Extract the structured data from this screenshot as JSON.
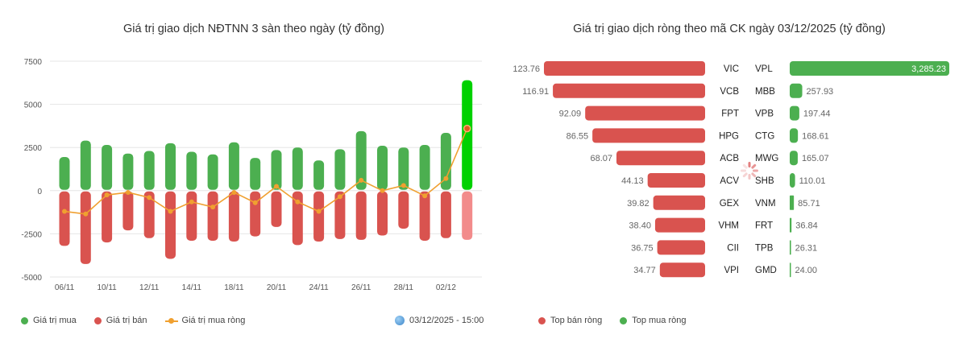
{
  "left_title": "Giá trị giao dịch NĐTNN 3 sàn theo ngày (tỷ đồng)",
  "right_title": "Giá trị giao dịch ròng theo mã CK ngày 03/12/2025 (tỷ đồng)",
  "timestamp": "03/12/2025 - 15:00",
  "colors": {
    "buy": "#4caf50",
    "sell": "#d9534f",
    "net": "#f0a030",
    "buy_highlight": "#00d100",
    "sell_highlight": "#f28b8b"
  },
  "legend_left": [
    {
      "label": "Giá trị mua",
      "color": "#4caf50"
    },
    {
      "label": "Giá trị bán",
      "color": "#d9534f"
    },
    {
      "label": "Giá trị mua ròng",
      "color": "#f0a030"
    }
  ],
  "legend_right": [
    {
      "label": "Top bán ròng",
      "color": "#d9534f"
    },
    {
      "label": "Top mua ròng",
      "color": "#4caf50"
    }
  ],
  "chart_data": [
    {
      "type": "bar",
      "title": "Giá trị giao dịch NĐTNN 3 sàn theo ngày (tỷ đồng)",
      "ylim": [
        -5000,
        7500
      ],
      "yticks": [
        7500,
        5000,
        2500,
        0,
        -2500,
        -5000
      ],
      "xtick_labels": [
        "06/11",
        "10/11",
        "12/11",
        "14/11",
        "18/11",
        "20/11",
        "24/11",
        "26/11",
        "28/11",
        "02/12"
      ],
      "grid": true,
      "legend_position": "bottom-left",
      "series": [
        {
          "name": "Giá trị mua",
          "values": [
            1950,
            2900,
            2650,
            2150,
            2300,
            2750,
            2250,
            2100,
            2800,
            1900,
            2350,
            2500,
            1750,
            2400,
            3450,
            2600,
            2500,
            2650,
            3350,
            6400
          ]
        },
        {
          "name": "Giá trị bán",
          "values": [
            -3200,
            -4250,
            -3000,
            -2300,
            -2750,
            -3950,
            -2900,
            -2900,
            -2950,
            -2650,
            -2100,
            -3150,
            -2950,
            -2800,
            -2850,
            -2600,
            -2200,
            -2900,
            -2750,
            -2850
          ]
        },
        {
          "name": "Giá trị mua ròng",
          "values": [
            -1200,
            -1350,
            -250,
            -100,
            -400,
            -1200,
            -650,
            -950,
            -100,
            -700,
            250,
            -650,
            -1200,
            -350,
            600,
            0,
            300,
            -300,
            700,
            3600
          ]
        }
      ]
    },
    {
      "type": "bar",
      "title": "Giá trị giao dịch ròng theo mã CK ngày 03/12/2025 (tỷ đồng)",
      "sell": [
        {
          "ticker": "VIC",
          "value": "123.76"
        },
        {
          "ticker": "VCB",
          "value": "116.91"
        },
        {
          "ticker": "FPT",
          "value": "92.09"
        },
        {
          "ticker": "HPG",
          "value": "86.55"
        },
        {
          "ticker": "ACB",
          "value": "68.07"
        },
        {
          "ticker": "ACV",
          "value": "44.13"
        },
        {
          "ticker": "GEX",
          "value": "39.82"
        },
        {
          "ticker": "VHM",
          "value": "38.40"
        },
        {
          "ticker": "CII",
          "value": "36.75"
        },
        {
          "ticker": "VPI",
          "value": "34.77"
        }
      ],
      "buy": [
        {
          "ticker": "VPL",
          "value": "3,285.23"
        },
        {
          "ticker": "MBB",
          "value": "257.93"
        },
        {
          "ticker": "VPB",
          "value": "197.44"
        },
        {
          "ticker": "CTG",
          "value": "168.61"
        },
        {
          "ticker": "MWG",
          "value": "165.07"
        },
        {
          "ticker": "SHB",
          "value": "110.01"
        },
        {
          "ticker": "VNM",
          "value": "85.71"
        },
        {
          "ticker": "FRT",
          "value": "36.84"
        },
        {
          "ticker": "TPB",
          "value": "26.31"
        },
        {
          "ticker": "GMD",
          "value": "24.00"
        }
      ]
    }
  ]
}
